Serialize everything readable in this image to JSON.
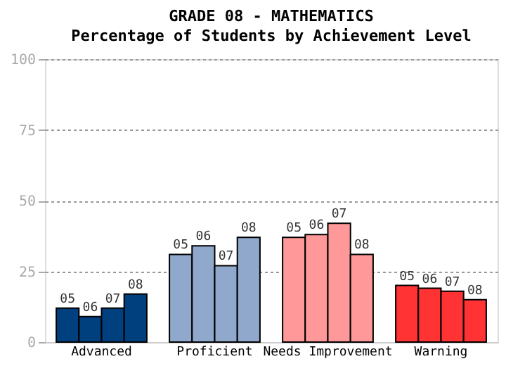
{
  "chart_data": {
    "type": "bar",
    "title": "GRADE 08 - MATHEMATICS",
    "subtitle": "Percentage of Students by Achievement Level",
    "categories": [
      "Advanced",
      "Proficient",
      "Needs Improvement",
      "Warning"
    ],
    "series": [
      {
        "name": "05",
        "values": [
          12,
          31,
          37,
          20
        ],
        "colors": [
          "#00407f",
          "#8fa8cc",
          "#ff9999",
          "#ff3333"
        ]
      },
      {
        "name": "06",
        "values": [
          9,
          34,
          38,
          19
        ],
        "colors": [
          "#00407f",
          "#8fa8cc",
          "#ff9999",
          "#ff3333"
        ]
      },
      {
        "name": "07",
        "values": [
          12,
          27,
          42,
          18
        ],
        "colors": [
          "#00407f",
          "#8fa8cc",
          "#ff9999",
          "#ff3333"
        ]
      },
      {
        "name": "08",
        "values": [
          17,
          37,
          31,
          15
        ],
        "colors": [
          "#00407f",
          "#8fa8cc",
          "#ff9999",
          "#ff3333"
        ]
      }
    ],
    "ylim": [
      0,
      100
    ],
    "yticks": [
      0,
      25,
      50,
      75,
      100
    ],
    "grid": "y"
  }
}
